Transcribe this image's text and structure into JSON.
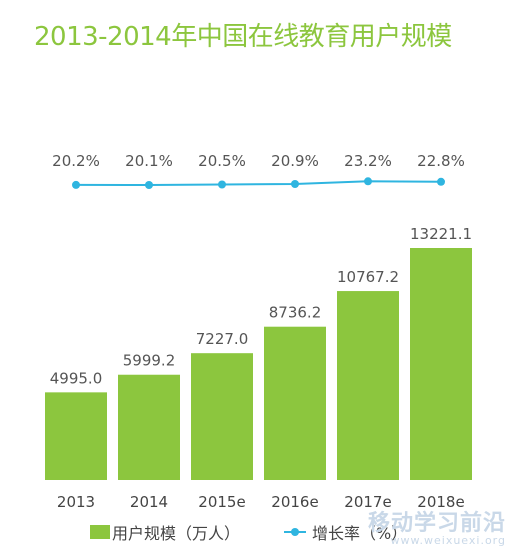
{
  "chart_data": {
    "type": "bar",
    "title": "2013-2014年中国在线教育用户规模",
    "categories": [
      "2013",
      "2014",
      "2015e",
      "2016e",
      "2017e",
      "2018e"
    ],
    "series": [
      {
        "name": "用户规模（万人）",
        "type": "bar",
        "values": [
          4995.0,
          5999.2,
          7227.0,
          8736.2,
          10767.2,
          13221.1
        ],
        "labels": [
          "4995.0",
          "5999.2",
          "7227.0",
          "8736.2",
          "10767.2",
          "13221.1"
        ],
        "color": "#8cc63e"
      },
      {
        "name": "增长率（%）",
        "type": "line",
        "values": [
          20.2,
          20.1,
          20.5,
          20.9,
          23.2,
          22.8
        ],
        "labels": [
          "20.2%",
          "20.1%",
          "20.5%",
          "20.9%",
          "23.2%",
          "22.8%"
        ],
        "color": "#2fb5e0"
      }
    ],
    "legend_position": "bottom",
    "grid": false
  },
  "legend": {
    "bar_label": "用户规模（万人）",
    "line_label": "增长率（%）"
  },
  "watermark": {
    "text": "移动学习前沿",
    "url": "www.weixuexi.org"
  }
}
